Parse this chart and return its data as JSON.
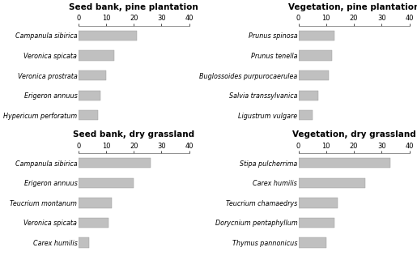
{
  "panels": [
    {
      "title": "Seed bank, pine plantation",
      "species": [
        "Campanula sibirica",
        "Veronica spicata",
        "Veronica prostrata",
        "Erigeron annuus",
        "Hypericum perforatum"
      ],
      "values": [
        21,
        13,
        10,
        8,
        7
      ],
      "xlim": [
        0,
        40
      ],
      "xticks": [
        0,
        10,
        20,
        30,
        40
      ]
    },
    {
      "title": "Vegetation, pine plantation",
      "species": [
        "Prunus spinosa",
        "Prunus tenella",
        "Buglossoides purpurocaerulea",
        "Salvia transsylvanica",
        "Ligustrum vulgare"
      ],
      "values": [
        13,
        12,
        11,
        7,
        5
      ],
      "xlim": [
        0,
        40
      ],
      "xticks": [
        0,
        10,
        20,
        30,
        40
      ]
    },
    {
      "title": "Seed bank, dry grassland",
      "species": [
        "Campanula sibirica",
        "Erigeron annuus",
        "Teucrium montanum",
        "Veronica spicata",
        "Carex humilis"
      ],
      "values": [
        26,
        20,
        12,
        11,
        4
      ],
      "xlim": [
        0,
        40
      ],
      "xticks": [
        0,
        10,
        20,
        30,
        40
      ]
    },
    {
      "title": "Vegetation, dry grassland",
      "species": [
        "Stipa pulcherrima",
        "Carex humilis",
        "Teucrium chamaedrys",
        "Dorycnium pentaphyllum",
        "Thymus pannonicus"
      ],
      "values": [
        33,
        24,
        14,
        13,
        10
      ],
      "xlim": [
        0,
        40
      ],
      "xticks": [
        0,
        10,
        20,
        30,
        40
      ]
    }
  ],
  "bar_color": "#c0c0c0",
  "bar_edgecolor": "#999999",
  "background_color": "#ffffff",
  "title_fontsize": 7.5,
  "label_fontsize": 5.8,
  "tick_fontsize": 6.0
}
